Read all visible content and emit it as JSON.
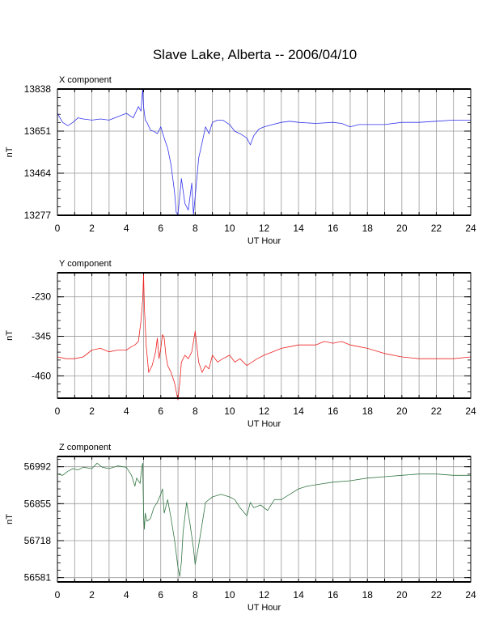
{
  "title": "Slave Lake, Alberta -- 2006/04/10",
  "chart_data": [
    {
      "type": "line",
      "panel_title": "X component",
      "xlabel": "UT Hour",
      "ylabel": "nT",
      "xlim": [
        0,
        24
      ],
      "ylim": [
        13277,
        13838
      ],
      "xticks": [
        0,
        2,
        4,
        6,
        8,
        10,
        12,
        14,
        16,
        18,
        20,
        22,
        24
      ],
      "yticks": [
        13277,
        13464,
        13651,
        13838
      ],
      "grid": true,
      "color": "#3333ee",
      "x": [
        0,
        0.3,
        0.6,
        0.9,
        1.2,
        1.5,
        2.0,
        2.5,
        3.0,
        3.5,
        4.0,
        4.4,
        4.7,
        4.85,
        4.95,
        5.0,
        5.1,
        5.2,
        5.4,
        5.6,
        5.8,
        6.0,
        6.2,
        6.4,
        6.6,
        6.8,
        6.9,
        7.0,
        7.2,
        7.4,
        7.6,
        7.8,
        7.9,
        8.0,
        8.2,
        8.4,
        8.6,
        8.8,
        9.0,
        9.3,
        9.6,
        10.0,
        10.3,
        10.6,
        11.0,
        11.2,
        11.4,
        11.7,
        12.0,
        12.5,
        13.0,
        13.5,
        14.0,
        15.0,
        16.0,
        16.5,
        17.0,
        17.5,
        18.0,
        19.0,
        20.0,
        21.0,
        22.0,
        23.0,
        24.0
      ],
      "values": [
        13730,
        13690,
        13675,
        13690,
        13710,
        13705,
        13700,
        13705,
        13700,
        13715,
        13730,
        13710,
        13760,
        13740,
        13840,
        13760,
        13700,
        13690,
        13655,
        13650,
        13640,
        13670,
        13620,
        13575,
        13500,
        13380,
        13290,
        13280,
        13440,
        13330,
        13300,
        13420,
        13280,
        13360,
        13530,
        13600,
        13670,
        13640,
        13690,
        13700,
        13700,
        13680,
        13650,
        13640,
        13620,
        13590,
        13630,
        13660,
        13670,
        13680,
        13690,
        13695,
        13690,
        13685,
        13690,
        13685,
        13670,
        13680,
        13680,
        13680,
        13690,
        13690,
        13695,
        13700,
        13700
      ]
    },
    {
      "type": "line",
      "panel_title": "Y component",
      "xlabel": "UT Hour",
      "ylabel": "nT",
      "xlim": [
        0,
        24
      ],
      "ylim": [
        -525,
        -160
      ],
      "xticks": [
        0,
        2,
        4,
        6,
        8,
        10,
        12,
        14,
        16,
        18,
        20,
        22,
        24
      ],
      "yticks": [
        -230,
        -345,
        -460
      ],
      "grid": true,
      "color": "#ee2222",
      "x": [
        0,
        0.5,
        1.0,
        1.5,
        2.0,
        2.5,
        3.0,
        3.5,
        4.0,
        4.3,
        4.5,
        4.7,
        4.85,
        4.95,
        5.0,
        5.05,
        5.15,
        5.3,
        5.5,
        5.7,
        5.8,
        5.9,
        6.0,
        6.1,
        6.2,
        6.3,
        6.4,
        6.6,
        6.8,
        7.0,
        7.1,
        7.2,
        7.4,
        7.6,
        7.8,
        8.0,
        8.2,
        8.4,
        8.6,
        8.8,
        9.0,
        9.3,
        9.6,
        10.0,
        10.3,
        10.6,
        11.0,
        11.3,
        11.6,
        12.0,
        12.5,
        13.0,
        13.5,
        14.0,
        15.0,
        15.5,
        16.0,
        16.5,
        17.0,
        17.5,
        18.0,
        19.0,
        20.0,
        21.0,
        22.0,
        23.0,
        24.0
      ],
      "values": [
        -405,
        -410,
        -410,
        -405,
        -385,
        -380,
        -390,
        -385,
        -385,
        -375,
        -370,
        -360,
        -300,
        -240,
        -165,
        -260,
        -370,
        -450,
        -430,
        -390,
        -350,
        -410,
        -380,
        -340,
        -350,
        -400,
        -430,
        -450,
        -480,
        -530,
        -480,
        -420,
        -400,
        -410,
        -390,
        -330,
        -420,
        -450,
        -430,
        -440,
        -400,
        -420,
        -410,
        -400,
        -420,
        -410,
        -430,
        -420,
        -410,
        -400,
        -390,
        -380,
        -375,
        -370,
        -370,
        -360,
        -365,
        -360,
        -370,
        -375,
        -380,
        -395,
        -405,
        -410,
        -410,
        -410,
        -405
      ]
    },
    {
      "type": "line",
      "panel_title": "Z component",
      "xlabel": "UT Hour",
      "ylabel": "nT",
      "xlim": [
        0,
        24
      ],
      "ylim": [
        56565,
        57030
      ],
      "xticks": [
        0,
        2,
        4,
        6,
        8,
        10,
        12,
        14,
        16,
        18,
        20,
        22,
        24
      ],
      "yticks": [
        56581,
        56718,
        56855,
        56992
      ],
      "grid": true,
      "color": "#337744",
      "x": [
        0,
        0.3,
        0.6,
        0.9,
        1.2,
        1.5,
        2.0,
        2.3,
        2.6,
        3.0,
        3.5,
        4.0,
        4.3,
        4.5,
        4.6,
        4.8,
        4.9,
        4.95,
        5.0,
        5.05,
        5.1,
        5.2,
        5.4,
        5.6,
        5.8,
        6.0,
        6.1,
        6.2,
        6.4,
        6.6,
        6.8,
        7.0,
        7.1,
        7.2,
        7.3,
        7.5,
        7.7,
        7.9,
        8.0,
        8.2,
        8.4,
        8.6,
        8.8,
        9.0,
        9.5,
        10.0,
        10.3,
        10.6,
        11.0,
        11.2,
        11.4,
        11.8,
        12.2,
        12.6,
        13.0,
        13.5,
        14.0,
        14.5,
        15.0,
        16.0,
        17.0,
        18.0,
        19.0,
        20.0,
        21.0,
        22.0,
        23.0,
        24.0
      ],
      "values": [
        56965,
        56960,
        56975,
        56985,
        56980,
        56990,
        56985,
        57005,
        56990,
        56985,
        56995,
        56990,
        56960,
        56920,
        56950,
        56930,
        56990,
        57005,
        56820,
        56760,
        56820,
        56790,
        56800,
        56840,
        56860,
        56890,
        56910,
        56820,
        56870,
        56800,
        56720,
        56620,
        56585,
        56640,
        56750,
        56860,
        56780,
        56690,
        56630,
        56700,
        56780,
        56860,
        56870,
        56880,
        56890,
        56880,
        56870,
        56840,
        56810,
        56860,
        56840,
        56850,
        56830,
        56870,
        56870,
        56890,
        56910,
        56920,
        56925,
        56935,
        56940,
        56950,
        56955,
        56960,
        56965,
        56965,
        56960,
        56960
      ]
    }
  ]
}
